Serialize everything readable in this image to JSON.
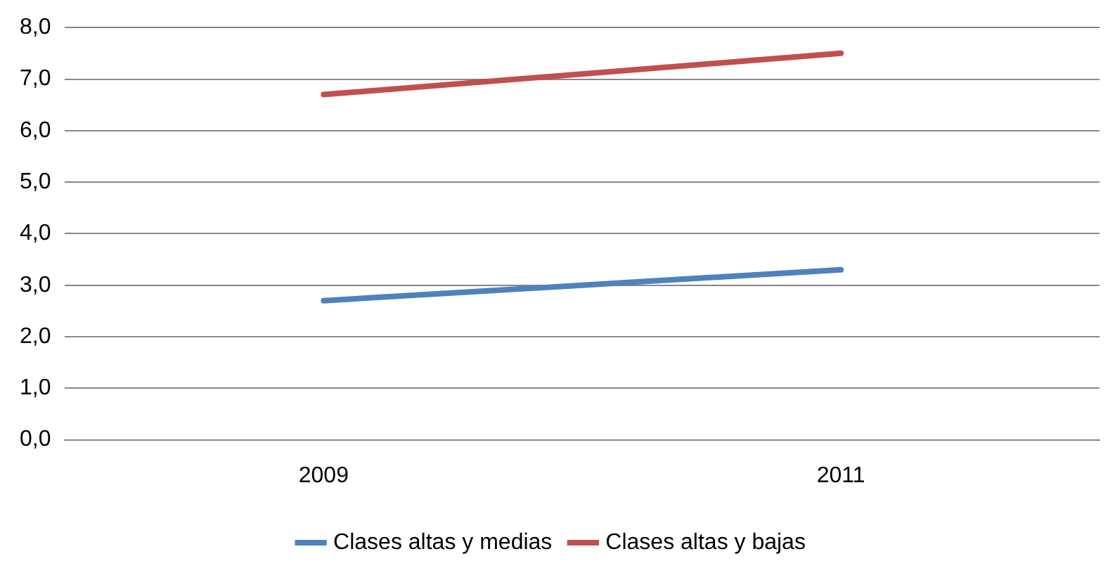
{
  "chart_data": {
    "type": "line",
    "categories": [
      "2009",
      "2011"
    ],
    "series": [
      {
        "name": "Clases altas y medias",
        "color": "#4f81bd",
        "values": [
          2.7,
          3.3
        ]
      },
      {
        "name": "Clases altas y bajas",
        "color": "#c0504d",
        "values": [
          6.7,
          7.5
        ]
      }
    ],
    "ylim": [
      0,
      8
    ],
    "yticks": [
      {
        "value": 0,
        "label": "0,0"
      },
      {
        "value": 1,
        "label": "1,0"
      },
      {
        "value": 2,
        "label": "2,0"
      },
      {
        "value": 3,
        "label": "3,0"
      },
      {
        "value": 4,
        "label": "4,0"
      },
      {
        "value": 5,
        "label": "5,0"
      },
      {
        "value": 6,
        "label": "6,0"
      },
      {
        "value": 7,
        "label": "7,0"
      },
      {
        "value": 8,
        "label": "8,0"
      }
    ],
    "grid": "y",
    "legend": "bottom",
    "marker": "none",
    "line_style": "solid"
  }
}
